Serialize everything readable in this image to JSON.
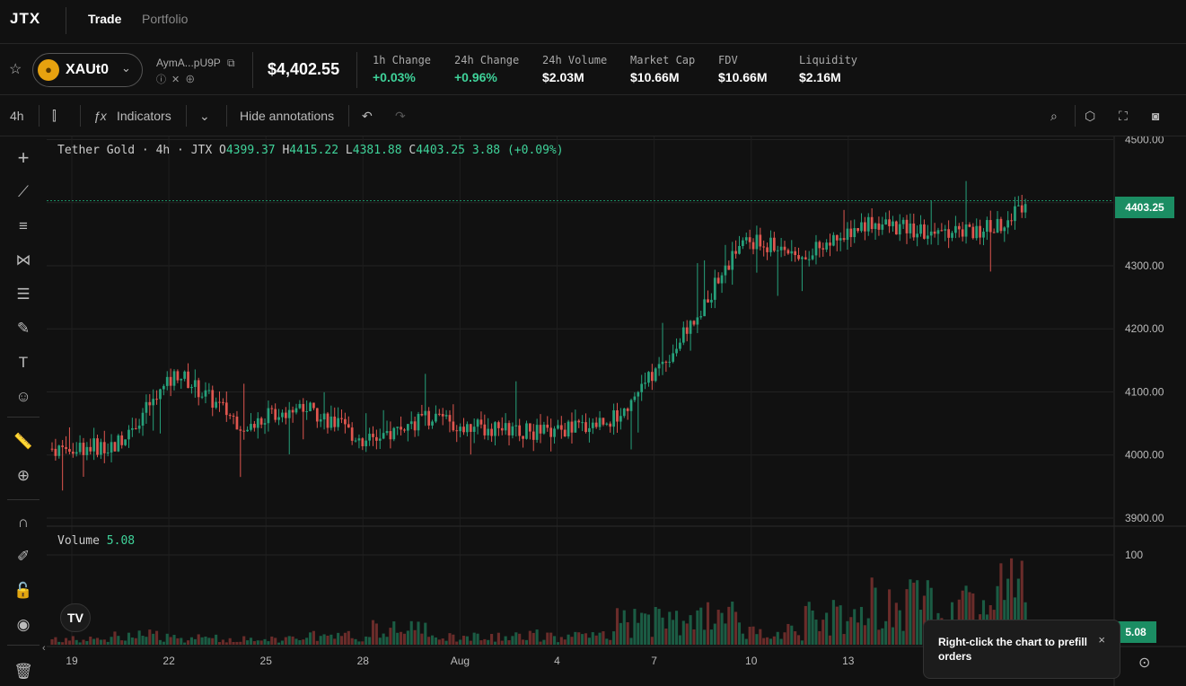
{
  "nav": {
    "logo": "JTX",
    "tabs": [
      "Trade",
      "Portfolio"
    ]
  },
  "ticker": {
    "symbol": "XAUt0",
    "address": "AymA...pU9P",
    "price": "$4,402.55",
    "stats": [
      {
        "label": "1h Change",
        "value": "+0.03%",
        "up": true
      },
      {
        "label": "24h Change",
        "value": "+0.96%",
        "up": true
      },
      {
        "label": "24h Volume",
        "value": "$2.03M",
        "up": false
      },
      {
        "label": "Market Cap",
        "value": "$10.66M",
        "up": false
      },
      {
        "label": "FDV",
        "value": "$10.66M",
        "up": false
      },
      {
        "label": "Liquidity",
        "value": "$2.16M",
        "up": false
      }
    ]
  },
  "toolbar": {
    "interval": "4h",
    "indicators": "Indicators",
    "hide_annotations": "Hide annotations"
  },
  "legend": {
    "name": "Tether Gold · 4h · JTX",
    "o_label": "O",
    "o": "4399.37",
    "h_label": "H",
    "h": "4415.22",
    "l_label": "L",
    "l": "4381.88",
    "c_label": "C",
    "c": "4403.25",
    "change": "3.88 (+0.09%)"
  },
  "volume_legend": {
    "label": "Volume",
    "value": "5.08"
  },
  "last_price_tag": "4403.25",
  "last_volume_tag": "5.08",
  "toast": {
    "text": "Right-click the chart to prefill orders",
    "close": "×"
  },
  "colors": {
    "up": "#26a17b",
    "down": "#e0564f",
    "accent": "#1b8d63",
    "background": "#111111"
  },
  "chart_data": {
    "type": "candlestick",
    "interval": "4h",
    "x_ticks": [
      "19",
      "22",
      "25",
      "28",
      "Aug",
      "4",
      "7",
      "10",
      "13"
    ],
    "y_ticks": [
      "4500.00",
      "4400.00",
      "4300.00",
      "4200.00",
      "4100.00",
      "4000.00",
      "3900.00"
    ],
    "volume_ticks": [
      "100"
    ],
    "ylim": [
      3890,
      4505
    ],
    "segments": [
      {
        "bars": 18,
        "start": 4010,
        "end": 4015,
        "vol": 6
      },
      {
        "bars": 18,
        "start": 4015,
        "end": 4130,
        "vol": 10
      },
      {
        "bars": 18,
        "start": 4130,
        "end": 4050,
        "vol": 7
      },
      {
        "bars": 18,
        "start": 4050,
        "end": 4080,
        "vol": 6
      },
      {
        "bars": 18,
        "start": 4080,
        "end": 4020,
        "vol": 9
      },
      {
        "bars": 18,
        "start": 4020,
        "end": 4060,
        "vol": 18
      },
      {
        "bars": 18,
        "start": 4060,
        "end": 4040,
        "vol": 8
      },
      {
        "bars": 18,
        "start": 4040,
        "end": 4035,
        "vol": 10
      },
      {
        "bars": 18,
        "start": 4035,
        "end": 4060,
        "vol": 9
      },
      {
        "bars": 18,
        "start": 4060,
        "end": 4180,
        "vol": 25
      },
      {
        "bars": 18,
        "start": 4180,
        "end": 4340,
        "vol": 30
      },
      {
        "bars": 18,
        "start": 4340,
        "end": 4320,
        "vol": 14
      },
      {
        "bars": 18,
        "start": 4320,
        "end": 4370,
        "vol": 30
      },
      {
        "bars": 18,
        "start": 4370,
        "end": 4350,
        "vol": 45
      },
      {
        "bars": 18,
        "start": 4350,
        "end": 4360,
        "vol": 40
      },
      {
        "bars": 10,
        "start": 4360,
        "end": 4403,
        "vol": 70
      }
    ]
  }
}
